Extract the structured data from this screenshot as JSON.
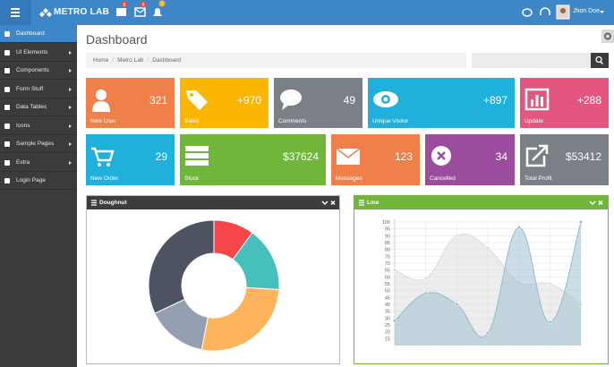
{
  "topbar": {
    "brand": "METRO LAB",
    "badges": [
      "8",
      "8",
      "7"
    ],
    "user": "Jhon Doe"
  },
  "sidebar": {
    "items": [
      "Dashboard",
      "UI Elements",
      "Components",
      "Form Stuff",
      "Data Tables",
      "Icons",
      "Sample Pages",
      "Extra",
      "Login Page"
    ]
  },
  "page": {
    "title": "Dashboard",
    "breadcrumb": [
      "Home",
      "Metro Lab",
      "Dashboard"
    ]
  },
  "tiles": [
    {
      "label": "New User",
      "value": "321",
      "color": "#f0804a"
    },
    {
      "label": "Sales",
      "value": "+970",
      "color": "#fbb600"
    },
    {
      "label": "Comments",
      "value": "49",
      "color": "#7b7f86"
    },
    {
      "label": "Unique Visitor",
      "value": "+897",
      "color": "#1fb0dc"
    },
    {
      "label": "Update",
      "value": "+288",
      "color": "#e3567f"
    },
    {
      "label": "New Order",
      "value": "29",
      "color": "#1fb0dc"
    },
    {
      "label": "Stock",
      "value": "$37624",
      "color": "#6fb63a"
    },
    {
      "label": "Messages",
      "value": "123",
      "color": "#f0804a"
    },
    {
      "label": "Cancelled",
      "value": "34",
      "color": "#9a4d9f"
    },
    {
      "label": "Total Profit",
      "value": "$53412",
      "color": "#7b7f86"
    }
  ],
  "chart_data": [
    {
      "type": "doughnut",
      "title": "Doughnut",
      "values": [
        10,
        16,
        27,
        15,
        32
      ],
      "colors": [
        "#f7464a",
        "#46bfbd",
        "#fdb45c",
        "#949fb1",
        "#4d5360"
      ]
    },
    {
      "type": "line",
      "title": "Line",
      "categories": [
        null,
        null,
        null,
        null,
        null,
        null,
        null
      ],
      "series": [
        {
          "color": "#dcdcdc",
          "values": [
            65,
            59,
            90,
            81,
            56,
            55,
            40
          ]
        },
        {
          "color": "#97bbcd",
          "values": [
            28,
            48,
            40,
            19,
            96,
            27,
            100
          ]
        }
      ],
      "ylim": [
        10,
        100
      ],
      "yticks": [
        15,
        20,
        25,
        30,
        35,
        40,
        45,
        50,
        55,
        60,
        65,
        70,
        75,
        80,
        85,
        90,
        95,
        100
      ],
      "grid": true
    }
  ]
}
